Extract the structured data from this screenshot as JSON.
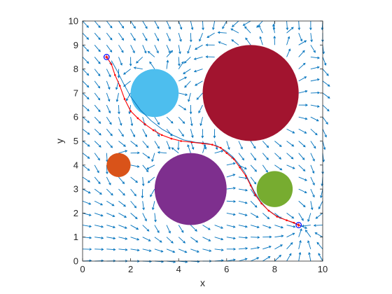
{
  "chart_data": {
    "type": "scatter",
    "title": "",
    "xlabel": "x",
    "ylabel": "y",
    "xlim": [
      0,
      10
    ],
    "ylim": [
      0,
      10
    ],
    "xticks": [
      "0",
      "2",
      "4",
      "6",
      "8",
      "10"
    ],
    "yticks": [
      "0",
      "1",
      "2",
      "3",
      "4",
      "5",
      "6",
      "7",
      "8",
      "9",
      "10"
    ],
    "grid": false,
    "legend": "none",
    "obstacles": [
      {
        "cx": 3.0,
        "cy": 7.0,
        "r": 1.0,
        "color": "#4dbeee"
      },
      {
        "cx": 7.0,
        "cy": 7.0,
        "r": 2.0,
        "color": "#a2142f"
      },
      {
        "cx": 1.5,
        "cy": 4.0,
        "r": 0.5,
        "color": "#d95319"
      },
      {
        "cx": 4.5,
        "cy": 3.0,
        "r": 1.5,
        "color": "#7e2f8e"
      },
      {
        "cx": 8.0,
        "cy": 3.0,
        "r": 0.75,
        "color": "#77ac30"
      }
    ],
    "start": {
      "x": 1.0,
      "y": 8.5
    },
    "goal": {
      "x": 9.0,
      "y": 1.5
    },
    "path": {
      "color": "#ff0000",
      "x": [
        1.0,
        1.2,
        1.35,
        1.55,
        1.75,
        2.0,
        2.3,
        2.6,
        2.95,
        3.3,
        3.7,
        4.1,
        4.55,
        5.0,
        5.4,
        5.75,
        6.0,
        6.3,
        6.55,
        6.8,
        7.0,
        7.2,
        7.45,
        7.75,
        8.1,
        8.5,
        8.8,
        9.0
      ],
      "y": [
        8.5,
        8.2,
        7.75,
        7.3,
        6.75,
        6.25,
        5.95,
        5.7,
        5.45,
        5.25,
        5.1,
        5.0,
        4.95,
        4.9,
        4.85,
        4.72,
        4.5,
        4.25,
        3.9,
        3.55,
        3.15,
        2.75,
        2.4,
        2.1,
        1.85,
        1.7,
        1.6,
        1.5
      ]
    },
    "flow_line": {
      "color": "#0072bd",
      "x": [
        1.2,
        1.45,
        1.7,
        2.0,
        2.4,
        2.85,
        3.3,
        3.75,
        4.2,
        4.7,
        5.2,
        5.6,
        5.95,
        6.25,
        6.5,
        6.75,
        6.95,
        7.15,
        7.4,
        7.7,
        8.05,
        8.45,
        8.8,
        9.0
      ],
      "y": [
        8.35,
        7.9,
        7.4,
        6.85,
        6.3,
        5.85,
        5.5,
        5.25,
        5.05,
        4.95,
        4.9,
        4.8,
        4.6,
        4.35,
        4.05,
        3.7,
        3.3,
        2.9,
        2.5,
        2.15,
        1.9,
        1.72,
        1.58,
        1.5
      ]
    },
    "quiver": {
      "color": "#0072bd",
      "grid_spacing": 0.5,
      "x_range": [
        0,
        10
      ],
      "y_range": [
        0,
        10
      ]
    }
  }
}
